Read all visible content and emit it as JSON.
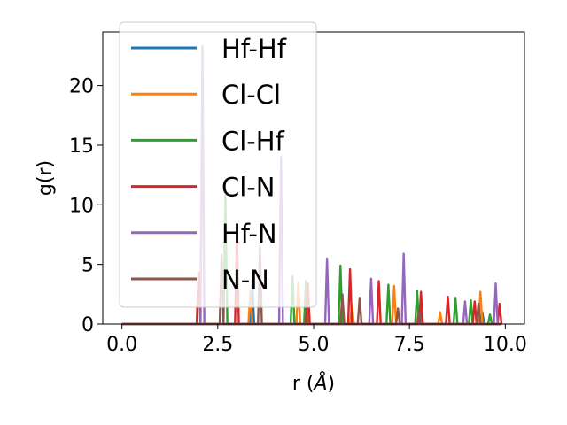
{
  "chart_data": {
    "type": "line",
    "xlabel_main": "r (",
    "xlabel_unit": "Å",
    "xlabel_close": ")",
    "ylabel": "g(r)",
    "xlim": [
      -0.5,
      10.5
    ],
    "ylim": [
      0,
      24.5
    ],
    "xticks": [
      0.0,
      2.5,
      5.0,
      7.5,
      10.0
    ],
    "xtick_labels": [
      "0.0",
      "2.5",
      "5.0",
      "7.5",
      "10.0"
    ],
    "yticks": [
      0,
      5,
      10,
      15,
      20
    ],
    "ytick_labels": [
      "0",
      "5",
      "10",
      "15",
      "20"
    ],
    "grid": false,
    "legend_position": "upper-left",
    "series": [
      {
        "name": "Hf-Hf",
        "color": "#1f77b4",
        "peaks": [
          [
            3.4,
            3.4
          ],
          [
            7.8,
            1.4
          ],
          [
            9.4,
            1.0
          ]
        ]
      },
      {
        "name": "Cl-Cl",
        "color": "#ff7f0e",
        "peaks": [
          [
            3.35,
            2.8
          ],
          [
            4.6,
            3.5
          ],
          [
            6.0,
            1.6
          ],
          [
            7.1,
            3.2
          ],
          [
            8.3,
            1.0
          ],
          [
            9.35,
            2.7
          ]
        ]
      },
      {
        "name": "Cl-Hf",
        "color": "#2ca02c",
        "peaks": [
          [
            2.7,
            10.8
          ],
          [
            4.45,
            4.0
          ],
          [
            4.8,
            3.6
          ],
          [
            5.7,
            4.9
          ],
          [
            6.95,
            3.3
          ],
          [
            7.7,
            2.8
          ],
          [
            8.7,
            2.2
          ],
          [
            9.1,
            2.0
          ],
          [
            9.6,
            0.8
          ]
        ]
      },
      {
        "name": "Cl-N",
        "color": "#d62728",
        "peaks": [
          [
            2.0,
            4.3
          ],
          [
            3.0,
            7.6
          ],
          [
            4.85,
            3.4
          ],
          [
            5.95,
            4.6
          ],
          [
            6.7,
            3.6
          ],
          [
            7.8,
            2.7
          ],
          [
            8.5,
            2.3
          ],
          [
            9.2,
            1.9
          ],
          [
            9.85,
            1.7
          ]
        ]
      },
      {
        "name": "Hf-N",
        "color": "#9467bd",
        "peaks": [
          [
            2.1,
            23.3
          ],
          [
            4.15,
            14.0
          ],
          [
            5.35,
            5.5
          ],
          [
            6.5,
            3.8
          ],
          [
            7.35,
            5.9
          ],
          [
            8.95,
            1.9
          ],
          [
            9.75,
            3.4
          ]
        ]
      },
      {
        "name": "N-N",
        "color": "#8c564b",
        "peaks": [
          [
            2.6,
            5.8
          ],
          [
            3.6,
            6.5
          ],
          [
            5.75,
            2.5
          ],
          [
            6.2,
            2.2
          ],
          [
            7.2,
            1.3
          ],
          [
            7.75,
            1.2
          ],
          [
            9.3,
            1.7
          ]
        ]
      }
    ]
  }
}
